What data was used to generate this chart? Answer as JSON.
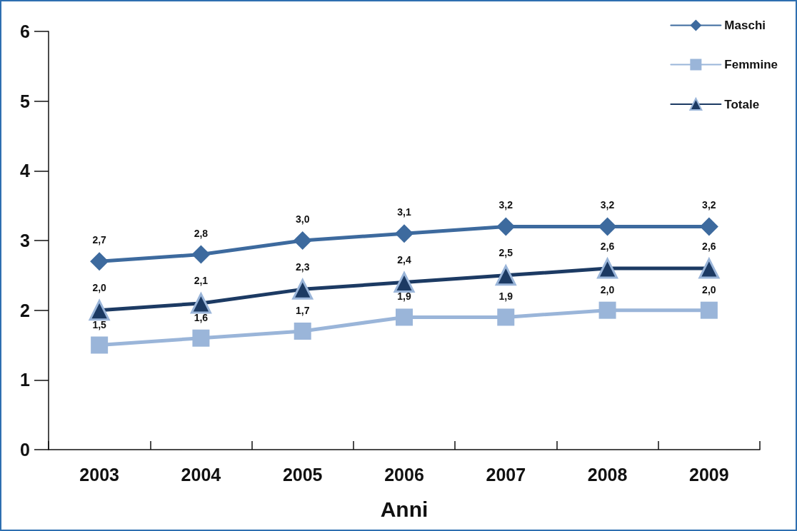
{
  "chart_data": {
    "type": "line",
    "xlabel": "Anni",
    "categories": [
      "2003",
      "2004",
      "2005",
      "2006",
      "2007",
      "2008",
      "2009"
    ],
    "series": [
      {
        "name": "Maschi",
        "color": "#3d6a9e",
        "marker": "diamond",
        "values": [
          2.7,
          2.8,
          3.0,
          3.1,
          3.2,
          3.2,
          3.2
        ],
        "value_labels": [
          "2,7",
          "2,8",
          "3,0",
          "3,1",
          "3,2",
          "3,2",
          "3,2"
        ]
      },
      {
        "name": "Femmine",
        "color": "#9ab5d9",
        "marker": "square",
        "values": [
          1.5,
          1.6,
          1.7,
          1.9,
          1.9,
          2.0,
          2.0
        ],
        "value_labels": [
          "1,5",
          "1,6",
          "1,7",
          "1,9",
          "1,9",
          "2,0",
          "2,0"
        ]
      },
      {
        "name": "Totale",
        "color": "#1c3a63",
        "marker": "triangle",
        "values": [
          2.0,
          2.1,
          2.3,
          2.4,
          2.5,
          2.6,
          2.6
        ],
        "value_labels": [
          "2,0",
          "2,1",
          "2,3",
          "2,4",
          "2,5",
          "2,6",
          "2,6"
        ]
      }
    ],
    "ylim": [
      0,
      6
    ],
    "yticks": [
      0,
      1,
      2,
      3,
      4,
      5,
      6
    ],
    "grid": false,
    "legend": "top right",
    "line_style": "solid"
  }
}
